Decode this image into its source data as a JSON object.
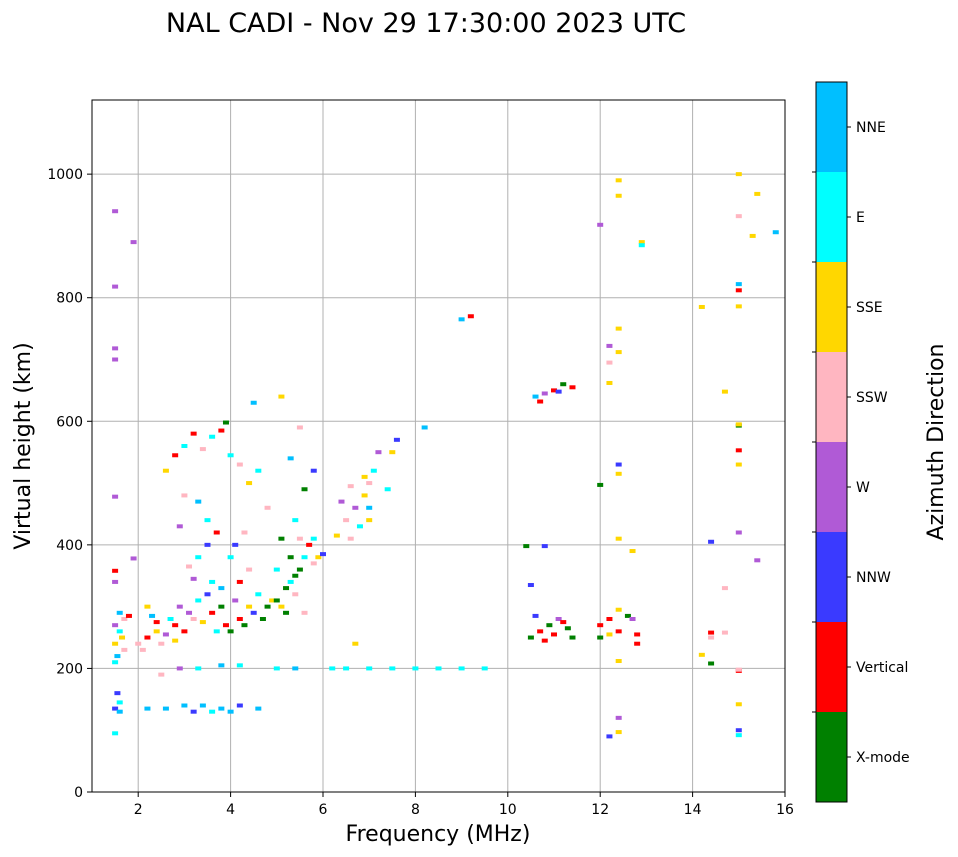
{
  "chart_data": {
    "type": "scatter",
    "title": "NAL CADI - Nov 29 17:30:00 2023 UTC",
    "xlabel": "Frequency (MHz)",
    "ylabel": "Virtual height (km)",
    "xlim": [
      1,
      16
    ],
    "ylim": [
      0,
      1120
    ],
    "xticks": [
      2,
      4,
      6,
      8,
      10,
      12,
      14,
      16
    ],
    "yticks": [
      0,
      200,
      400,
      600,
      800,
      1000
    ],
    "grid": true,
    "colorbar": {
      "label": "Azimuth Direction",
      "categories": [
        "X-mode",
        "Vertical",
        "NNW",
        "W",
        "SSW",
        "SSE",
        "E",
        "NNE"
      ],
      "colors": {
        "X-mode": "#008000",
        "Vertical": "#ff0000",
        "NNW": "#3a3aff",
        "W": "#b05ad6",
        "SSW": "#ffb6c1",
        "SSE": "#ffd700",
        "E": "#00ffff",
        "NNE": "#00bfff"
      }
    },
    "points": [
      [
        1.5,
        135,
        "NNW"
      ],
      [
        1.6,
        145,
        "E"
      ],
      [
        1.55,
        160,
        "NNW"
      ],
      [
        1.5,
        95,
        "E"
      ],
      [
        1.6,
        130,
        "NNE"
      ],
      [
        1.5,
        240,
        "SSE"
      ],
      [
        1.6,
        260,
        "E"
      ],
      [
        1.7,
        280,
        "SSW"
      ],
      [
        1.55,
        220,
        "NNE"
      ],
      [
        1.65,
        250,
        "SSE"
      ],
      [
        1.5,
        270,
        "W"
      ],
      [
        1.7,
        230,
        "SSW"
      ],
      [
        1.6,
        290,
        "NNE"
      ],
      [
        1.8,
        285,
        "Vertical"
      ],
      [
        1.5,
        210,
        "E"
      ],
      [
        1.5,
        340,
        "W"
      ],
      [
        1.5,
        358,
        "Vertical"
      ],
      [
        1.9,
        378,
        "W"
      ],
      [
        1.5,
        478,
        "W"
      ],
      [
        1.5,
        700,
        "W"
      ],
      [
        1.5,
        718,
        "W"
      ],
      [
        1.5,
        818,
        "W"
      ],
      [
        1.5,
        940,
        "W"
      ],
      [
        1.9,
        890,
        "W"
      ],
      [
        2.0,
        240,
        "SSW"
      ],
      [
        2.2,
        250,
        "Vertical"
      ],
      [
        2.4,
        260,
        "SSE"
      ],
      [
        2.6,
        255,
        "W"
      ],
      [
        2.8,
        270,
        "Vertical"
      ],
      [
        2.3,
        285,
        "NNE"
      ],
      [
        2.5,
        240,
        "SSW"
      ],
      [
        2.7,
        280,
        "E"
      ],
      [
        2.9,
        300,
        "W"
      ],
      [
        2.1,
        230,
        "SSW"
      ],
      [
        2.5,
        190,
        "SSW"
      ],
      [
        2.4,
        275,
        "Vertical"
      ],
      [
        2.8,
        245,
        "SSE"
      ],
      [
        3.0,
        260,
        "Vertical"
      ],
      [
        2.2,
        300,
        "SSE"
      ],
      [
        3.1,
        290,
        "W"
      ],
      [
        3.3,
        310,
        "E"
      ],
      [
        3.5,
        320,
        "NNW"
      ],
      [
        3.2,
        345,
        "W"
      ],
      [
        3.6,
        290,
        "Vertical"
      ],
      [
        3.4,
        275,
        "SSE"
      ],
      [
        3.8,
        300,
        "X-mode"
      ],
      [
        3.9,
        270,
        "Vertical"
      ],
      [
        3.7,
        260,
        "E"
      ],
      [
        3.3,
        380,
        "E"
      ],
      [
        3.5,
        400,
        "NNW"
      ],
      [
        3.1,
        365,
        "SSW"
      ],
      [
        3.8,
        330,
        "NNE"
      ],
      [
        3.2,
        280,
        "SSW"
      ],
      [
        3.6,
        340,
        "E"
      ],
      [
        4.0,
        260,
        "X-mode"
      ],
      [
        4.2,
        280,
        "Vertical"
      ],
      [
        4.4,
        300,
        "SSE"
      ],
      [
        4.1,
        310,
        "W"
      ],
      [
        4.3,
        270,
        "X-mode"
      ],
      [
        4.5,
        290,
        "NNW"
      ],
      [
        4.6,
        320,
        "E"
      ],
      [
        4.8,
        300,
        "X-mode"
      ],
      [
        4.2,
        340,
        "Vertical"
      ],
      [
        4.0,
        380,
        "E"
      ],
      [
        4.4,
        360,
        "SSW"
      ],
      [
        4.7,
        280,
        "X-mode"
      ],
      [
        4.9,
        310,
        "SSE"
      ],
      [
        4.1,
        400,
        "NNW"
      ],
      [
        4.3,
        420,
        "SSW"
      ],
      [
        5.0,
        310,
        "X-mode"
      ],
      [
        5.2,
        330,
        "X-mode"
      ],
      [
        5.4,
        350,
        "X-mode"
      ],
      [
        5.1,
        300,
        "SSE"
      ],
      [
        5.3,
        340,
        "E"
      ],
      [
        5.5,
        360,
        "X-mode"
      ],
      [
        5.6,
        380,
        "E"
      ],
      [
        5.8,
        370,
        "SSW"
      ],
      [
        5.2,
        290,
        "X-mode"
      ],
      [
        5.4,
        320,
        "SSW"
      ],
      [
        5.7,
        400,
        "Vertical"
      ],
      [
        5.0,
        360,
        "E"
      ],
      [
        5.5,
        410,
        "SSW"
      ],
      [
        5.9,
        380,
        "SSE"
      ],
      [
        5.3,
        380,
        "X-mode"
      ],
      [
        5.6,
        290,
        "SSW"
      ],
      [
        5.8,
        410,
        "E"
      ],
      [
        5.1,
        410,
        "X-mode"
      ],
      [
        5.4,
        440,
        "E"
      ],
      [
        2.6,
        520,
        "SSE"
      ],
      [
        2.8,
        545,
        "Vertical"
      ],
      [
        3.0,
        560,
        "E"
      ],
      [
        3.2,
        580,
        "Vertical"
      ],
      [
        3.4,
        555,
        "SSW"
      ],
      [
        3.6,
        575,
        "E"
      ],
      [
        3.8,
        585,
        "Vertical"
      ],
      [
        4.0,
        545,
        "E"
      ],
      [
        3.9,
        598,
        "X-mode"
      ],
      [
        4.2,
        530,
        "SSW"
      ],
      [
        4.4,
        500,
        "SSE"
      ],
      [
        4.6,
        520,
        "E"
      ],
      [
        4.8,
        460,
        "SSW"
      ],
      [
        3.0,
        480,
        "SSW"
      ],
      [
        3.3,
        470,
        "NNE"
      ],
      [
        3.5,
        440,
        "E"
      ],
      [
        3.7,
        420,
        "Vertical"
      ],
      [
        2.9,
        430,
        "W"
      ],
      [
        4.5,
        630,
        "NNE"
      ],
      [
        5.1,
        640,
        "SSE"
      ],
      [
        5.5,
        590,
        "SSW"
      ],
      [
        5.3,
        540,
        "NNE"
      ],
      [
        5.8,
        520,
        "NNW"
      ],
      [
        5.6,
        490,
        "X-mode"
      ],
      [
        6.0,
        385,
        "NNW"
      ],
      [
        6.3,
        415,
        "SSE"
      ],
      [
        6.5,
        440,
        "SSW"
      ],
      [
        6.7,
        460,
        "W"
      ],
      [
        6.9,
        480,
        "SSE"
      ],
      [
        7.0,
        500,
        "SSW"
      ],
      [
        7.1,
        520,
        "E"
      ],
      [
        6.8,
        430,
        "E"
      ],
      [
        6.6,
        410,
        "SSW"
      ],
      [
        7.0,
        460,
        "NNE"
      ],
      [
        6.9,
        510,
        "SSE"
      ],
      [
        7.2,
        550,
        "W"
      ],
      [
        7.6,
        570,
        "NNW"
      ],
      [
        7.5,
        550,
        "SSE"
      ],
      [
        7.4,
        490,
        "E"
      ],
      [
        6.4,
        470,
        "W"
      ],
      [
        6.6,
        495,
        "SSW"
      ],
      [
        7.0,
        440,
        "SSE"
      ],
      [
        6.2,
        200,
        "E"
      ],
      [
        6.5,
        200,
        "E"
      ],
      [
        7.0,
        200,
        "E"
      ],
      [
        7.5,
        200,
        "E"
      ],
      [
        8.0,
        200,
        "E"
      ],
      [
        8.5,
        200,
        "E"
      ],
      [
        9.0,
        200,
        "E"
      ],
      [
        9.5,
        200,
        "E"
      ],
      [
        5.4,
        200,
        "NNE"
      ],
      [
        5.0,
        200,
        "E"
      ],
      [
        4.2,
        205,
        "E"
      ],
      [
        3.8,
        205,
        "NNE"
      ],
      [
        3.3,
        200,
        "E"
      ],
      [
        2.9,
        200,
        "W"
      ],
      [
        6.7,
        240,
        "SSE"
      ],
      [
        2.2,
        135,
        "NNE"
      ],
      [
        2.6,
        135,
        "NNE"
      ],
      [
        3.0,
        140,
        "NNE"
      ],
      [
        3.4,
        140,
        "NNE"
      ],
      [
        3.8,
        135,
        "NNE"
      ],
      [
        4.2,
        140,
        "NNW"
      ],
      [
        4.6,
        135,
        "NNE"
      ],
      [
        3.2,
        130,
        "NNW"
      ],
      [
        3.6,
        130,
        "E"
      ],
      [
        4.0,
        130,
        "NNE"
      ],
      [
        8.2,
        590,
        "NNE"
      ],
      [
        9.0,
        765,
        "NNE"
      ],
      [
        9.2,
        770,
        "Vertical"
      ],
      [
        10.5,
        250,
        "X-mode"
      ],
      [
        10.7,
        260,
        "Vertical"
      ],
      [
        10.9,
        270,
        "X-mode"
      ],
      [
        11.1,
        280,
        "W"
      ],
      [
        11.3,
        265,
        "X-mode"
      ],
      [
        10.6,
        285,
        "NNW"
      ],
      [
        11.0,
        255,
        "Vertical"
      ],
      [
        11.4,
        250,
        "X-mode"
      ],
      [
        10.8,
        245,
        "Vertical"
      ],
      [
        11.2,
        275,
        "Vertical"
      ],
      [
        10.5,
        335,
        "NNW"
      ],
      [
        10.8,
        398,
        "NNW"
      ],
      [
        10.4,
        398,
        "X-mode"
      ],
      [
        10.6,
        640,
        "NNE"
      ],
      [
        10.8,
        645,
        "W"
      ],
      [
        11.0,
        650,
        "Vertical"
      ],
      [
        11.2,
        660,
        "X-mode"
      ],
      [
        11.4,
        655,
        "Vertical"
      ],
      [
        10.7,
        632,
        "Vertical"
      ],
      [
        11.1,
        648,
        "NNW"
      ],
      [
        12.2,
        280,
        "Vertical"
      ],
      [
        12.4,
        260,
        "Vertical"
      ],
      [
        12.6,
        285,
        "X-mode"
      ],
      [
        12.8,
        255,
        "Vertical"
      ],
      [
        12.2,
        255,
        "SSE"
      ],
      [
        12.0,
        250,
        "X-mode"
      ],
      [
        12.8,
        240,
        "Vertical"
      ],
      [
        12.4,
        295,
        "SSE"
      ],
      [
        12.7,
        280,
        "W"
      ],
      [
        12.0,
        270,
        "Vertical"
      ],
      [
        12.4,
        530,
        "NNW"
      ],
      [
        12.4,
        410,
        "SSE"
      ],
      [
        12.7,
        390,
        "SSE"
      ],
      [
        12.0,
        497,
        "X-mode"
      ],
      [
        12.4,
        515,
        "SSE"
      ],
      [
        12.4,
        750,
        "SSE"
      ],
      [
        12.4,
        712,
        "SSE"
      ],
      [
        12.2,
        695,
        "SSW"
      ],
      [
        12.2,
        722,
        "W"
      ],
      [
        12.4,
        965,
        "SSE"
      ],
      [
        12.4,
        990,
        "SSE"
      ],
      [
        12.0,
        918,
        "W"
      ],
      [
        12.2,
        662,
        "SSE"
      ],
      [
        12.4,
        212,
        "SSE"
      ],
      [
        12.4,
        120,
        "W"
      ],
      [
        12.4,
        97,
        "SSE"
      ],
      [
        12.2,
        90,
        "NNW"
      ],
      [
        12.9,
        890,
        "SSE"
      ],
      [
        12.9,
        885,
        "E"
      ],
      [
        14.2,
        785,
        "SSE"
      ],
      [
        14.4,
        405,
        "NNW"
      ],
      [
        14.4,
        258,
        "Vertical"
      ],
      [
        14.4,
        250,
        "SSW"
      ],
      [
        14.2,
        222,
        "SSE"
      ],
      [
        14.4,
        208,
        "X-mode"
      ],
      [
        14.7,
        330,
        "SSW"
      ],
      [
        14.7,
        648,
        "SSE"
      ],
      [
        14.7,
        258,
        "SSW"
      ],
      [
        15.0,
        1000,
        "SSE"
      ],
      [
        15.0,
        932,
        "SSW"
      ],
      [
        15.0,
        822,
        "NNE"
      ],
      [
        15.0,
        812,
        "Vertical"
      ],
      [
        15.0,
        786,
        "SSE"
      ],
      [
        15.0,
        593,
        "X-mode"
      ],
      [
        15.0,
        595,
        "SSE"
      ],
      [
        15.0,
        553,
        "Vertical"
      ],
      [
        15.0,
        530,
        "SSE"
      ],
      [
        15.0,
        420,
        "W"
      ],
      [
        15.0,
        196,
        "Vertical"
      ],
      [
        15.0,
        198,
        "SSW"
      ],
      [
        15.0,
        142,
        "SSE"
      ],
      [
        15.0,
        100,
        "NNW"
      ],
      [
        15.0,
        92,
        "E"
      ],
      [
        15.4,
        968,
        "SSE"
      ],
      [
        15.3,
        900,
        "SSE"
      ],
      [
        15.8,
        906,
        "NNE"
      ],
      [
        15.4,
        375,
        "W"
      ]
    ]
  }
}
